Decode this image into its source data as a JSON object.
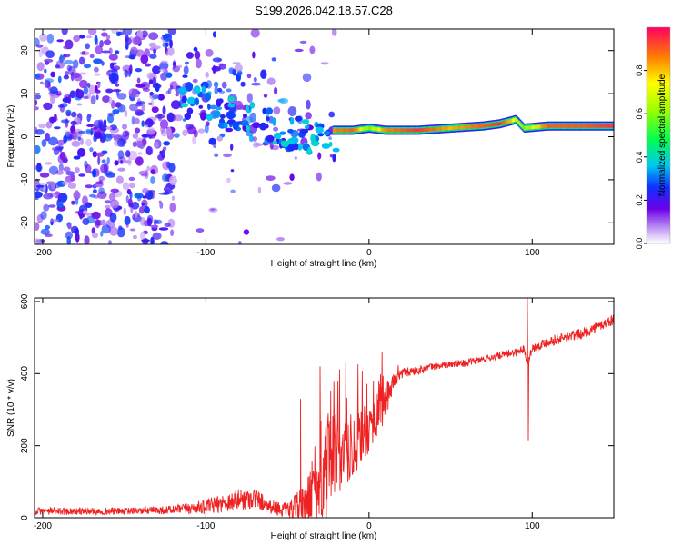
{
  "title": "S199.2026.042.18.57.C28",
  "chart_data": [
    {
      "type": "heatmap",
      "title": "S199.2026.042.18.57.C28",
      "xlabel": "Height of straight line (km)",
      "ylabel": "Frequency (Hz)",
      "xlim": [
        -205,
        150
      ],
      "ylim": [
        -25,
        25
      ],
      "xticks": [
        -200,
        -100,
        0,
        100
      ],
      "yticks": [
        -20,
        -10,
        0,
        10,
        20
      ],
      "colorbar": {
        "label": "Normalized spectral amplitude",
        "ticks": [
          "0.0",
          "0.2",
          "0.4",
          "0.6",
          "0.8"
        ],
        "tick_values": [
          0.0,
          0.2,
          0.4,
          0.6,
          0.8
        ],
        "range": [
          0,
          1
        ]
      },
      "ridge": {
        "description": "dominant frequency ridge vs height",
        "x": [
          -22,
          -10,
          0,
          10,
          30,
          50,
          70,
          80,
          90,
          95,
          110,
          130,
          150
        ],
        "freq": [
          1.5,
          1.5,
          2.0,
          1.5,
          1.5,
          2.0,
          2.5,
          3.0,
          4.0,
          2.0,
          2.5,
          2.5,
          2.5
        ],
        "amplitude": [
          0.85,
          0.9,
          0.6,
          0.85,
          0.95,
          0.8,
          0.9,
          0.95,
          0.7,
          0.6,
          0.9,
          0.9,
          0.95
        ]
      },
      "noise_region": {
        "x": [
          -205,
          -20
        ],
        "freq": [
          -25,
          25
        ],
        "amplitude": [
          0.05,
          0.3
        ]
      }
    },
    {
      "type": "line",
      "xlabel": "Height of straight line (km)",
      "ylabel": "SNR (10 * v/v)",
      "xlim": [
        -205,
        150
      ],
      "ylim": [
        0,
        610
      ],
      "xticks": [
        -200,
        -100,
        0,
        100
      ],
      "yticks": [
        0,
        200,
        400,
        600
      ],
      "color": "#ee2222",
      "series": [
        {
          "name": "SNR",
          "x": [
            -205,
            -150,
            -120,
            -100,
            -90,
            -80,
            -70,
            -60,
            -50,
            -40,
            -30,
            -25,
            -20,
            -10,
            0,
            10,
            15,
            20,
            30,
            40,
            50,
            60,
            70,
            80,
            90,
            95,
            97,
            100,
            110,
            120,
            130,
            140,
            150
          ],
          "y": [
            18,
            18,
            22,
            30,
            40,
            50,
            55,
            30,
            20,
            30,
            80,
            140,
            150,
            200,
            250,
            320,
            380,
            400,
            410,
            420,
            425,
            430,
            440,
            450,
            460,
            470,
            430,
            470,
            490,
            500,
            510,
            530,
            550
          ],
          "noise": [
            10,
            10,
            12,
            20,
            25,
            30,
            30,
            20,
            20,
            60,
            120,
            150,
            110,
            90,
            70,
            50,
            25,
            15,
            12,
            10,
            10,
            10,
            10,
            10,
            12,
            10,
            10,
            12,
            14,
            15,
            15,
            15,
            15
          ],
          "spikes": [
            {
              "x": -42,
              "y": 330
            },
            {
              "x": -30,
              "y": 420
            },
            {
              "x": -18,
              "y": 390
            },
            {
              "x": 8,
              "y": 460
            },
            {
              "x": 97,
              "y": 610
            },
            {
              "x": 97.6,
              "y": 215
            }
          ]
        }
      ]
    }
  ]
}
